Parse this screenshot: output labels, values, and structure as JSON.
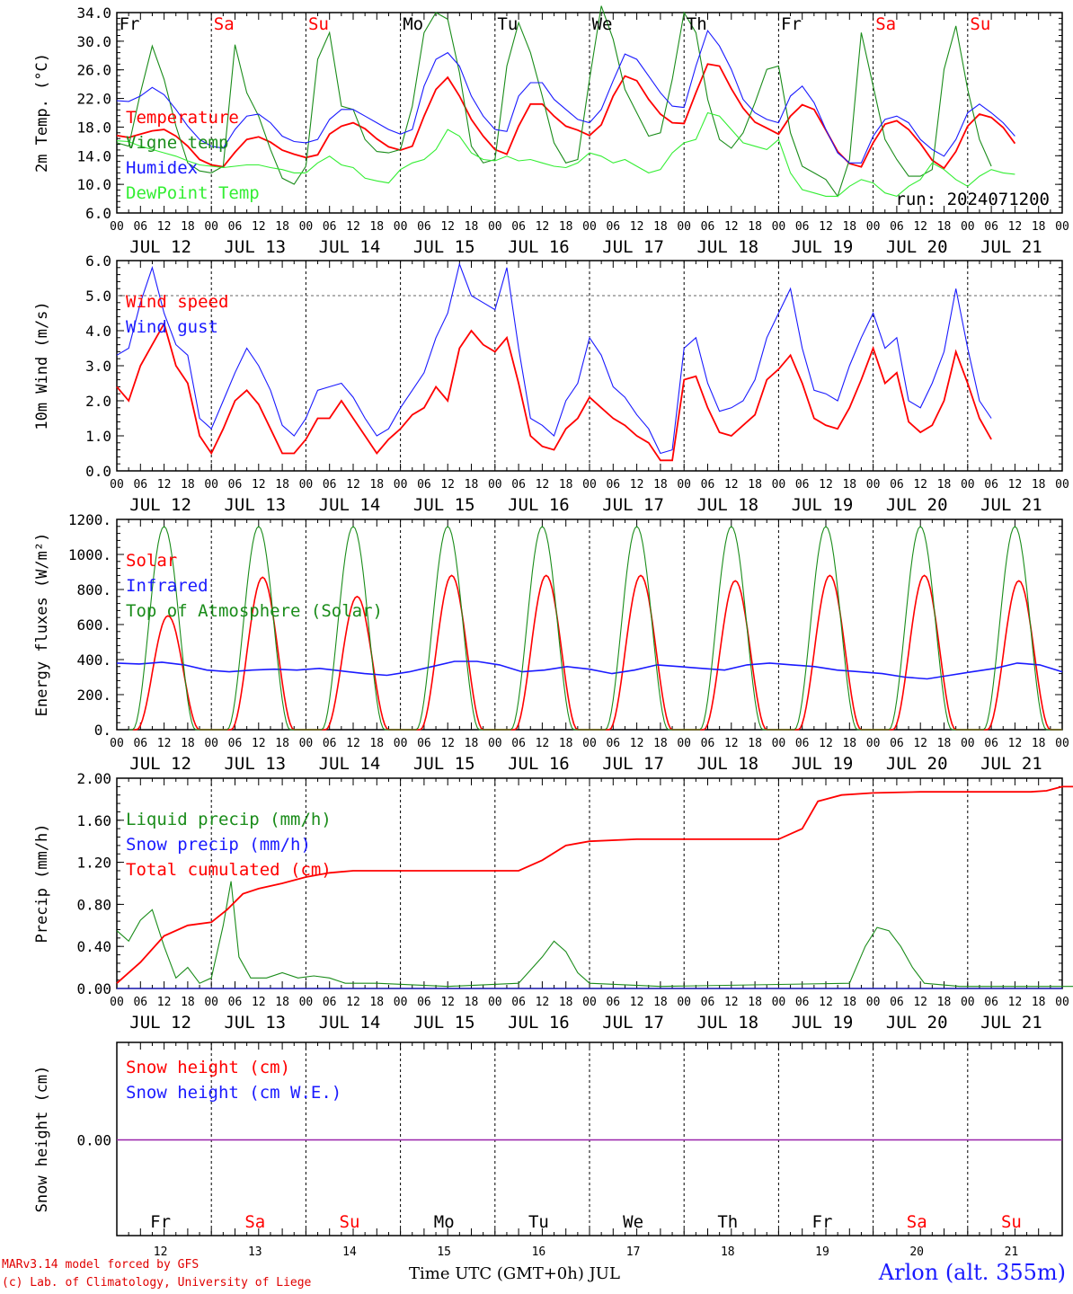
{
  "days": [
    "JUL 12",
    "JUL 13",
    "JUL 14",
    "JUL 15",
    "JUL 16",
    "JUL 17",
    "JUL 18",
    "JUL 19",
    "JUL 20",
    "JUL 21"
  ],
  "weekdays": [
    "Fr",
    "Sa",
    "Su",
    "Mo",
    "Tu",
    "We",
    "Th",
    "Fr",
    "Sa",
    "Su"
  ],
  "weekend_flags": [
    false,
    true,
    true,
    false,
    false,
    false,
    false,
    false,
    true,
    true
  ],
  "day_numbers": [
    "12",
    "13",
    "14",
    "15",
    "16",
    "17",
    "18",
    "19",
    "20",
    "21"
  ],
  "hour_ticks": [
    "00",
    "06",
    "12",
    "18"
  ],
  "footer": {
    "model": "MARv3.14 model forced by GFS",
    "copyright": "(c) Lab. of Climatology, University of Liege",
    "axis_title": "Time UTC (GMT+0h) JUL",
    "location": "Arlon (alt. 355m)"
  },
  "colors": {
    "red": "#ff0000",
    "green": "#1a8c1a",
    "blue": "#1a1aff",
    "lightgreen": "#33ee33",
    "purple": "#9922aa"
  },
  "chart_data": [
    {
      "type": "line",
      "ylabel": "2m Temp. (°C)",
      "ylim": [
        6,
        36
      ],
      "yticks": [
        "6.0",
        "10.0",
        "14.0",
        "18.0",
        "22.0",
        "26.0",
        "30.0",
        "34.0"
      ],
      "run": "run: 2024071200",
      "x_unit": "hours since JUL 12 00 UTC, 3-hourly",
      "series": [
        {
          "name": "Temperature",
          "color": "red",
          "values": [
            17.6,
            17.3,
            17.8,
            18.3,
            18.5,
            17.5,
            16.0,
            14.0,
            13.2,
            12.9,
            15.1,
            17.0,
            17.4,
            16.6,
            15.4,
            14.8,
            14.3,
            14.7,
            17.8,
            19.0,
            19.5,
            18.6,
            17.1,
            15.9,
            15.4,
            16.0,
            20.5,
            24.5,
            26.3,
            23.5,
            20.0,
            17.5,
            15.5,
            14.8,
            19.0,
            22.3,
            22.3,
            20.5,
            19.0,
            18.4,
            17.6,
            19.2,
            23.5,
            26.5,
            25.8,
            23.0,
            20.8,
            19.5,
            19.4,
            24.0,
            28.3,
            28.0,
            24.6,
            21.7,
            19.6,
            18.7,
            17.8,
            20.5,
            22.2,
            21.5,
            18.4,
            15.2,
            13.4,
            12.9,
            16.5,
            19.3,
            19.8,
            18.5,
            16.4,
            13.9,
            12.7,
            15.2,
            19.0,
            20.8,
            20.3,
            18.8,
            16.4
          ]
        },
        {
          "name": "Vigne temp",
          "color": "green",
          "values": [
            16.5,
            16.0,
            24.0,
            31.0,
            26.0,
            19.0,
            13.5,
            12.3,
            12.0,
            13.0,
            31.2,
            24.0,
            20.5,
            15.5,
            11.2,
            10.3,
            13.0,
            29.0,
            33.0,
            22.0,
            21.5,
            17.0,
            15.2,
            15.0,
            15.5,
            22.0,
            33.0,
            36.0,
            35.0,
            27.0,
            16.0,
            13.5,
            14.0,
            28.0,
            34.5,
            30.0,
            23.5,
            16.5,
            13.5,
            14.0,
            26.0,
            37.0,
            32.0,
            24.5,
            21.0,
            17.5,
            18.0,
            26.0,
            36.0,
            33.0,
            23.0,
            17.0,
            15.7,
            18.0,
            22.5,
            27.5,
            28.0,
            18.0,
            13.0,
            12.0,
            11.0,
            8.5,
            14.0,
            33.0,
            25.0,
            17.0,
            14.0,
            11.5,
            11.5,
            12.5,
            27.5,
            34.0,
            24.5,
            17.0,
            13.0
          ]
        },
        {
          "name": "Humidex",
          "color": "blue",
          "values": [
            22.8,
            22.7,
            23.5,
            24.8,
            23.7,
            21.5,
            19.0,
            17.0,
            16.0,
            15.7,
            18.5,
            20.5,
            20.8,
            19.5,
            17.5,
            16.7,
            16.5,
            17.0,
            20.0,
            21.5,
            21.5,
            20.5,
            19.5,
            18.5,
            17.8,
            18.5,
            25.0,
            29.0,
            30.0,
            28.0,
            23.5,
            20.5,
            18.5,
            18.2,
            23.5,
            25.5,
            25.5,
            23.0,
            21.5,
            20.0,
            19.5,
            21.5,
            25.8,
            29.8,
            29.0,
            26.5,
            24.0,
            22.0,
            21.8,
            28.0,
            33.3,
            31.0,
            27.5,
            23.0,
            21.0,
            20.0,
            19.5,
            23.5,
            25.0,
            22.5,
            18.5,
            15.0,
            13.5,
            13.5,
            17.5,
            20.0,
            20.5,
            19.5,
            17.0,
            15.5,
            14.5,
            17.0,
            21.0,
            22.3,
            21.0,
            19.5,
            17.5
          ]
        },
        {
          "name": "DewPoint Temp",
          "color": "lightgreen",
          "values": [
            16.8,
            16.7,
            16.0,
            15.5,
            15.0,
            14.5,
            13.8,
            13.2,
            13.0,
            12.8,
            13.0,
            13.2,
            13.2,
            12.8,
            12.5,
            12.0,
            12.0,
            13.5,
            14.5,
            13.2,
            12.8,
            11.2,
            10.8,
            10.5,
            12.5,
            13.5,
            14.0,
            15.5,
            18.5,
            17.5,
            15.0,
            14.0,
            13.8,
            14.5,
            13.8,
            14.0,
            13.5,
            13.0,
            12.8,
            13.5,
            15.0,
            14.5,
            13.5,
            14.0,
            13.0,
            12.0,
            12.5,
            15.0,
            16.5,
            17.0,
            21.0,
            20.5,
            18.5,
            16.5,
            16.0,
            15.5,
            17.0,
            12.0,
            9.5,
            9.0,
            8.5,
            8.5,
            10.0,
            11.0,
            10.5,
            9.0,
            8.5,
            10.0,
            11.0,
            13.5,
            12.5,
            11.0,
            10.0,
            11.5,
            12.5,
            12.0,
            11.8
          ]
        }
      ]
    },
    {
      "type": "line",
      "ylabel": "10m Wind (m/s)",
      "ylim": [
        0,
        6
      ],
      "yticks": [
        "0.0",
        "1.0",
        "2.0",
        "3.0",
        "4.0",
        "5.0",
        "6.0"
      ],
      "reference_line": 5.0,
      "x_unit": "hours since JUL 12 00 UTC, 3-hourly",
      "series": [
        {
          "name": "Wind speed",
          "color": "red",
          "values": [
            2.4,
            2.0,
            3.0,
            3.6,
            4.2,
            3.0,
            2.5,
            1.0,
            0.5,
            1.2,
            2.0,
            2.3,
            1.9,
            1.2,
            0.5,
            0.5,
            0.9,
            1.5,
            1.5,
            2.0,
            1.5,
            1.0,
            0.5,
            0.9,
            1.2,
            1.6,
            1.8,
            2.4,
            2.0,
            3.5,
            4.0,
            3.6,
            3.4,
            3.8,
            2.5,
            1.0,
            0.7,
            0.6,
            1.2,
            1.5,
            2.1,
            1.8,
            1.5,
            1.3,
            1.0,
            0.8,
            0.3,
            0.3,
            2.6,
            2.7,
            1.8,
            1.1,
            1.0,
            1.3,
            1.6,
            2.6,
            2.9,
            3.3,
            2.5,
            1.5,
            1.3,
            1.2,
            1.8,
            2.6,
            3.5,
            2.5,
            2.8,
            1.4,
            1.1,
            1.3,
            2.0,
            3.4,
            2.5,
            1.5,
            0.9
          ]
        },
        {
          "name": "Wind gust",
          "color": "blue",
          "values": [
            3.3,
            3.5,
            4.8,
            5.8,
            4.5,
            3.6,
            3.3,
            1.5,
            1.2,
            2.0,
            2.8,
            3.5,
            3.0,
            2.3,
            1.3,
            1.0,
            1.5,
            2.3,
            2.4,
            2.5,
            2.1,
            1.5,
            1.0,
            1.2,
            1.8,
            2.3,
            2.8,
            3.8,
            4.5,
            5.9,
            5.0,
            4.8,
            4.6,
            5.8,
            3.5,
            1.5,
            1.3,
            1.0,
            2.0,
            2.5,
            3.8,
            3.3,
            2.4,
            2.1,
            1.6,
            1.2,
            0.5,
            0.6,
            3.5,
            3.8,
            2.5,
            1.7,
            1.8,
            2.0,
            2.6,
            3.8,
            4.5,
            5.2,
            3.5,
            2.3,
            2.2,
            2.0,
            3.0,
            3.8,
            4.5,
            3.5,
            3.8,
            2.0,
            1.8,
            2.5,
            3.4,
            5.2,
            3.5,
            2.0,
            1.5
          ]
        }
      ]
    },
    {
      "type": "line",
      "ylabel": "Energy fluxes (W/m²)",
      "ylim": [
        0,
        1200
      ],
      "yticks": [
        "0.",
        "200.",
        "400.",
        "600.",
        "800.",
        "1000.",
        "1200."
      ],
      "x_unit": "hours since JUL 12 00 UTC",
      "series": [
        {
          "name": "Solar",
          "color": "red",
          "peaks": [
            650,
            870,
            760,
            880,
            880,
            880,
            850,
            880,
            880,
            850
          ],
          "peak_hour": 13,
          "daylight_hours": [
            5,
            21
          ]
        },
        {
          "name": "Infrared",
          "color": "blue",
          "values": [
            380,
            375,
            385,
            370,
            340,
            330,
            340,
            345,
            340,
            350,
            335,
            320,
            310,
            330,
            360,
            390,
            390,
            370,
            330,
            340,
            360,
            345,
            320,
            340,
            370,
            360,
            350,
            340,
            370,
            380,
            370,
            360,
            340,
            330,
            320,
            300,
            290,
            310,
            330,
            350,
            380,
            370,
            330
          ]
        },
        {
          "name": "Top of Atmosphere (Solar)",
          "color": "green",
          "peaks": [
            1160,
            1160,
            1160,
            1160,
            1160,
            1160,
            1160,
            1160,
            1160,
            1160
          ],
          "peak_hour": 12,
          "daylight_hours": [
            4,
            20
          ]
        }
      ]
    },
    {
      "type": "line",
      "ylabel": "Precip (mm/h)",
      "ylim": [
        0,
        2
      ],
      "yticks": [
        "0.00",
        "0.40",
        "0.80",
        "1.20",
        "1.60",
        "2.00"
      ],
      "x_unit": "hours since JUL 12 00 UTC",
      "series": [
        {
          "name": "Liquid precip (mm/h)",
          "color": "green",
          "points": [
            [
              0,
              0.55
            ],
            [
              3,
              0.45
            ],
            [
              6,
              0.65
            ],
            [
              9,
              0.75
            ],
            [
              12,
              0.4
            ],
            [
              15,
              0.1
            ],
            [
              18,
              0.2
            ],
            [
              21,
              0.05
            ],
            [
              24,
              0.1
            ],
            [
              27,
              0.6
            ],
            [
              29,
              1.02
            ],
            [
              31,
              0.3
            ],
            [
              34,
              0.1
            ],
            [
              38,
              0.1
            ],
            [
              42,
              0.15
            ],
            [
              46,
              0.1
            ],
            [
              50,
              0.12
            ],
            [
              54,
              0.1
            ],
            [
              58,
              0.05
            ],
            [
              66,
              0.05
            ],
            [
              84,
              0.02
            ],
            [
              102,
              0.05
            ],
            [
              108,
              0.3
            ],
            [
              111,
              0.45
            ],
            [
              114,
              0.35
            ],
            [
              117,
              0.15
            ],
            [
              120,
              0.05
            ],
            [
              138,
              0.02
            ],
            [
              186,
              0.05
            ],
            [
              190,
              0.4
            ],
            [
              193,
              0.58
            ],
            [
              196,
              0.55
            ],
            [
              199,
              0.4
            ],
            [
              202,
              0.2
            ],
            [
              205,
              0.05
            ],
            [
              214,
              0.02
            ],
            [
              243,
              0.02
            ],
            [
              246,
              0.12
            ],
            [
              249,
              0.12
            ],
            [
              252,
              0.05
            ],
            [
              255,
              0.0
            ]
          ]
        },
        {
          "name": "Snow precip (mm/h)",
          "color": "blue",
          "points": [
            [
              0,
              0
            ],
            [
              240,
              0
            ]
          ]
        },
        {
          "name": "Total cumulated (cm)",
          "color": "red",
          "points": [
            [
              0,
              0.05
            ],
            [
              6,
              0.25
            ],
            [
              12,
              0.5
            ],
            [
              18,
              0.6
            ],
            [
              24,
              0.63
            ],
            [
              28,
              0.75
            ],
            [
              32,
              0.9
            ],
            [
              36,
              0.95
            ],
            [
              42,
              1.0
            ],
            [
              48,
              1.06
            ],
            [
              54,
              1.1
            ],
            [
              60,
              1.12
            ],
            [
              72,
              1.12
            ],
            [
              102,
              1.12
            ],
            [
              108,
              1.22
            ],
            [
              114,
              1.36
            ],
            [
              120,
              1.4
            ],
            [
              132,
              1.42
            ],
            [
              168,
              1.42
            ],
            [
              174,
              1.52
            ],
            [
              178,
              1.78
            ],
            [
              184,
              1.84
            ],
            [
              192,
              1.86
            ],
            [
              204,
              1.87
            ],
            [
              232,
              1.87
            ],
            [
              236,
              1.88
            ],
            [
              240,
              1.92
            ],
            [
              255,
              1.92
            ]
          ]
        }
      ]
    },
    {
      "type": "line",
      "ylabel": "Snow height (cm)",
      "yticks": [
        "0.00"
      ],
      "series": [
        {
          "name": "Snow height (cm)",
          "color": "red",
          "values": [
            0,
            0
          ]
        },
        {
          "name": "Snow height (cm W.E.)",
          "color": "blue",
          "values": [
            0,
            0
          ]
        }
      ]
    }
  ]
}
